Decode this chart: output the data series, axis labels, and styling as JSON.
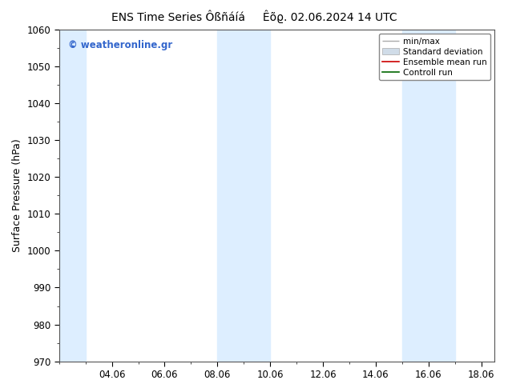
{
  "title1": "ENS Time Series Ôßñáíá",
  "title2": "Êõϱ. 02.06.2024 14 UTC",
  "ylabel": "Surface Pressure (hPa)",
  "ylim": [
    970,
    1060
  ],
  "yticks": [
    970,
    980,
    990,
    1000,
    1010,
    1020,
    1030,
    1040,
    1050,
    1060
  ],
  "xlim_start": 2.0,
  "xlim_end": 18.5,
  "xtick_labels": [
    "04.06",
    "06.06",
    "08.06",
    "10.06",
    "12.06",
    "14.06",
    "16.06",
    "18.06"
  ],
  "xtick_positions": [
    4,
    6,
    8,
    10,
    12,
    14,
    16,
    18
  ],
  "shaded_bands": [
    {
      "x_start": 2.0,
      "x_end": 3.0,
      "color": "#ddeeff"
    },
    {
      "x_start": 8.0,
      "x_end": 9.0,
      "color": "#ddeeff"
    },
    {
      "x_start": 9.0,
      "x_end": 10.0,
      "color": "#ddeeff"
    },
    {
      "x_start": 15.0,
      "x_end": 16.0,
      "color": "#ddeeff"
    },
    {
      "x_start": 16.0,
      "x_end": 17.0,
      "color": "#ddeeff"
    }
  ],
  "watermark_text": "© weatheronline.gr",
  "watermark_color": "#3366cc",
  "bg_color": "#ffffff",
  "plot_bg_color": "#ffffff",
  "legend_items": [
    {
      "label": "min/max",
      "color": "#aaaaaa",
      "type": "minmax"
    },
    {
      "label": "Standard deviation",
      "color": "#cccccc",
      "type": "box"
    },
    {
      "label": "Ensemble mean run",
      "color": "#cc0000",
      "type": "line"
    },
    {
      "label": "Controll run",
      "color": "#006600",
      "type": "line"
    }
  ],
  "title_fontsize": 10,
  "axis_label_fontsize": 9,
  "tick_fontsize": 8.5,
  "legend_fontsize": 7.5
}
